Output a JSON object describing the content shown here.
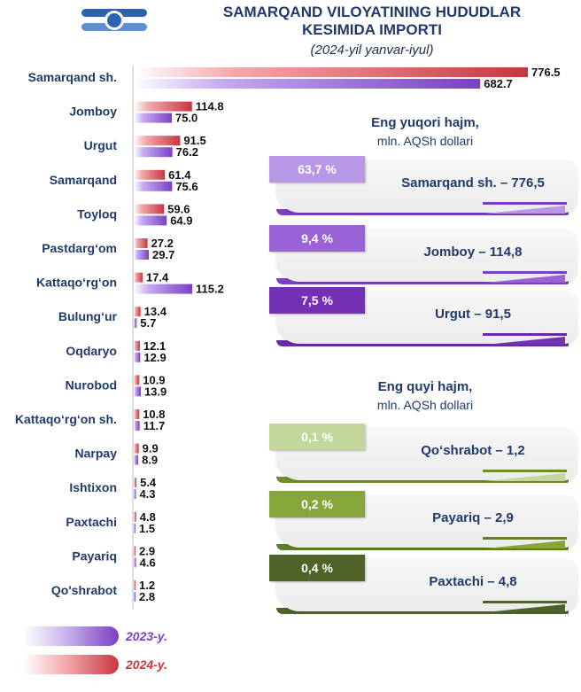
{
  "header": {
    "title_line1": "SAMARQAND VILOYATINING HUDUDLAR",
    "title_line2": "KESIMIDA IMPORTI",
    "subtitle": "(2024-yil yanvar-iyul)"
  },
  "chart_data": {
    "type": "bar",
    "orientation": "horizontal",
    "title": "SAMARQAND VILOYATINING HUDUDLAR KESIMIDA IMPORTI",
    "subtitle": "(2024-yil yanvar-iyul)",
    "categories": [
      "Samarqand sh.",
      "Jomboy",
      "Urgut",
      "Samarqand",
      "Toyloq",
      "Pastdarg‘om",
      "Kattaqo‘rg‘on",
      "Bulung‘ur",
      "Oqdaryo",
      "Nurobod",
      "Kattaqo‘rg‘on sh.",
      "Narpay",
      "Ishtixon",
      "Paxtachi",
      "Payariq",
      "Qo'shrabot"
    ],
    "series": [
      {
        "name": "2024-y.",
        "color": "#c8363f",
        "values": [
          776.5,
          114.8,
          91.5,
          61.4,
          59.6,
          27.2,
          17.4,
          13.4,
          12.1,
          10.9,
          10.8,
          9.9,
          5.4,
          4.8,
          2.9,
          1.2
        ],
        "labels": [
          "776.5",
          "114.8",
          "91.5",
          "61.4",
          "59.6",
          "27.2",
          "17.4",
          "13.4",
          "12.1",
          "10.9",
          "10.8",
          "9.9",
          "5.4",
          "4.8",
          "2.9",
          "1.2"
        ]
      },
      {
        "name": "2023-y.",
        "color": "#7a3fc4",
        "values": [
          682.7,
          75.0,
          76.2,
          75.6,
          64.9,
          29.7,
          115.2,
          5.7,
          12.9,
          13.9,
          11.7,
          8.9,
          4.3,
          1.5,
          4.6,
          2.8
        ],
        "labels": [
          "682.7",
          "75.0",
          "76.2",
          "75.6",
          "64.9",
          "29.7",
          "115.2",
          "5.7",
          "12.9",
          "13.9",
          "11.7",
          "8.9",
          "4.3",
          "1.5",
          "4.6",
          "2.8"
        ]
      }
    ],
    "xlim": [
      0,
      800
    ],
    "legend_position": "bottom-left"
  },
  "legend": {
    "label_2023": "2023-y.",
    "label_2024": "2024-y."
  },
  "top_panel": {
    "heading": "Eng yuqori hajm,",
    "unit": "mln. AQSh dollari",
    "cards": [
      {
        "percent": "63,7 %",
        "text": "Samarqand sh. – 776,5",
        "color": "#b898e6",
        "under": "#7a3fc4"
      },
      {
        "percent": "9,4 %",
        "text": "Jomboy – 114,8",
        "color": "#9a62d6",
        "under": "#7a3fc4"
      },
      {
        "percent": "7,5 %",
        "text": "Urgut – 91,5",
        "color": "#7430b4",
        "under": "#6a2aa8"
      }
    ]
  },
  "bottom_panel": {
    "heading": "Eng quyi hajm,",
    "unit": "mln. AQSh dollari",
    "cards": [
      {
        "percent": "0,1 %",
        "text": "Qo‘shrabot – 1,2",
        "color": "#c3d69b",
        "under": "#6b8e2a"
      },
      {
        "percent": "0,2 %",
        "text": "Payariq – 2,9",
        "color": "#86a63a",
        "under": "#5f7f24"
      },
      {
        "percent": "0,4 %",
        "text": "Paxtachi – 4,8",
        "color": "#4f6228",
        "under": "#4f6228"
      }
    ]
  }
}
